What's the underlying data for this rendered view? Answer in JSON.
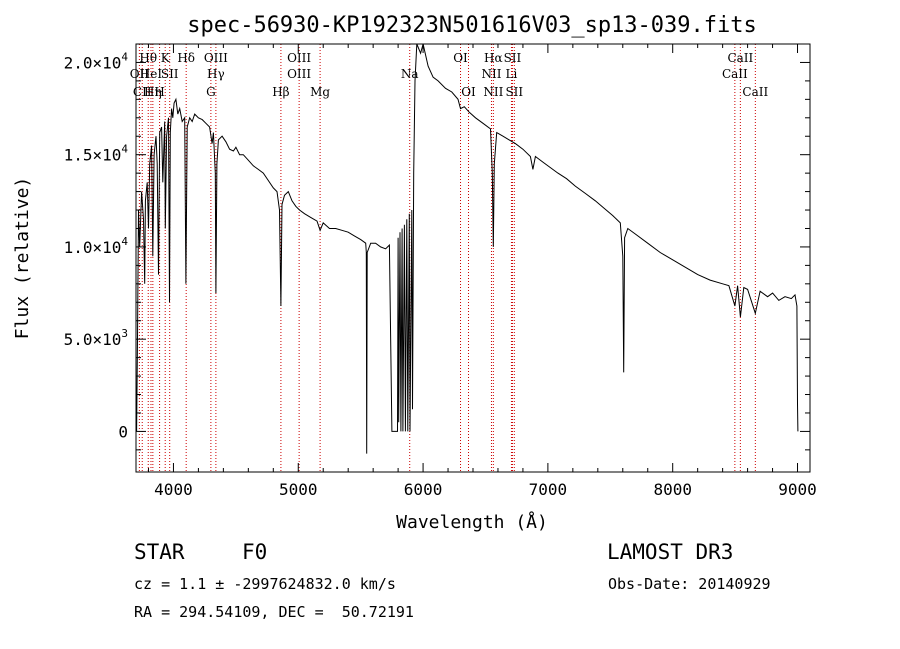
{
  "chart_data": {
    "type": "line",
    "title": "spec-56930-KP192323N501616V03_sp13-039.fits",
    "xlabel": "Wavelength (Å)",
    "ylabel": "Flux (relative)",
    "xlim": [
      3700,
      9100
    ],
    "ylim": [
      -2200,
      21000
    ],
    "x_ticks": [
      {
        "value": 4000,
        "label": "4000"
      },
      {
        "value": 5000,
        "label": "5000"
      },
      {
        "value": 6000,
        "label": "6000"
      },
      {
        "value": 7000,
        "label": "7000"
      },
      {
        "value": 8000,
        "label": "8000"
      },
      {
        "value": 9000,
        "label": "9000"
      }
    ],
    "y_ticks": [
      {
        "value": 0,
        "base": "0",
        "exp": ""
      },
      {
        "value": 5000,
        "base": "5.0×10",
        "exp": "3"
      },
      {
        "value": 10000,
        "base": "1.0×10",
        "exp": "4"
      },
      {
        "value": 15000,
        "base": "1.5×10",
        "exp": "4"
      },
      {
        "value": 20000,
        "base": "2.0×10",
        "exp": "4"
      }
    ],
    "spectrum": [
      [
        3700,
        500
      ],
      [
        3705,
        0
      ],
      [
        3712,
        5000
      ],
      [
        3720,
        12000
      ],
      [
        3730,
        10000
      ],
      [
        3745,
        13000
      ],
      [
        3760,
        11500
      ],
      [
        3770,
        8000
      ],
      [
        3775,
        12500
      ],
      [
        3790,
        13500
      ],
      [
        3800,
        11000
      ],
      [
        3810,
        14500
      ],
      [
        3825,
        15500
      ],
      [
        3835,
        9500
      ],
      [
        3845,
        15000
      ],
      [
        3860,
        16000
      ],
      [
        3870,
        14500
      ],
      [
        3880,
        8500
      ],
      [
        3890,
        16200
      ],
      [
        3905,
        16500
      ],
      [
        3915,
        13500
      ],
      [
        3930,
        16800
      ],
      [
        3935,
        11000
      ],
      [
        3945,
        16000
      ],
      [
        3960,
        17000
      ],
      [
        3968,
        7000
      ],
      [
        3975,
        16200
      ],
      [
        3985,
        17500
      ],
      [
        3995,
        17000
      ],
      [
        4005,
        17800
      ],
      [
        4020,
        18000
      ],
      [
        4035,
        17200
      ],
      [
        4050,
        17500
      ],
      [
        4070,
        16800
      ],
      [
        4090,
        17000
      ],
      [
        4100,
        8000
      ],
      [
        4110,
        16500
      ],
      [
        4130,
        17000
      ],
      [
        4150,
        16800
      ],
      [
        4170,
        17200
      ],
      [
        4200,
        17000
      ],
      [
        4230,
        16900
      ],
      [
        4260,
        16700
      ],
      [
        4290,
        16500
      ],
      [
        4310,
        15600
      ],
      [
        4320,
        16200
      ],
      [
        4335,
        14000
      ],
      [
        4340,
        7500
      ],
      [
        4348,
        14500
      ],
      [
        4360,
        15800
      ],
      [
        4390,
        16000
      ],
      [
        4420,
        15700
      ],
      [
        4450,
        15300
      ],
      [
        4480,
        15200
      ],
      [
        4500,
        15400
      ],
      [
        4530,
        15000
      ],
      [
        4560,
        15000
      ],
      [
        4600,
        14700
      ],
      [
        4640,
        14400
      ],
      [
        4680,
        14200
      ],
      [
        4720,
        14000
      ],
      [
        4760,
        13600
      ],
      [
        4800,
        13200
      ],
      [
        4830,
        13000
      ],
      [
        4850,
        12000
      ],
      [
        4861,
        6800
      ],
      [
        4870,
        12300
      ],
      [
        4890,
        12800
      ],
      [
        4920,
        13000
      ],
      [
        4950,
        12500
      ],
      [
        4980,
        12200
      ],
      [
        5010,
        12000
      ],
      [
        5050,
        11800
      ],
      [
        5100,
        11600
      ],
      [
        5150,
        11400
      ],
      [
        5175,
        10900
      ],
      [
        5200,
        11300
      ],
      [
        5250,
        11000
      ],
      [
        5300,
        11000
      ],
      [
        5350,
        10900
      ],
      [
        5400,
        10800
      ],
      [
        5450,
        10600
      ],
      [
        5500,
        10400
      ],
      [
        5540,
        10200
      ],
      [
        5545,
        9700
      ],
      [
        5548,
        -1200
      ],
      [
        5552,
        9700
      ],
      [
        5580,
        10200
      ],
      [
        5620,
        10200
      ],
      [
        5660,
        10000
      ],
      [
        5700,
        9900
      ],
      [
        5730,
        10100
      ],
      [
        5750,
        0
      ],
      [
        5795,
        0
      ],
      [
        5800,
        10500
      ],
      [
        5805,
        500
      ],
      [
        5815,
        10800
      ],
      [
        5822,
        0
      ],
      [
        5832,
        11000
      ],
      [
        5838,
        0
      ],
      [
        5850,
        11200
      ],
      [
        5858,
        0
      ],
      [
        5870,
        11500
      ],
      [
        5878,
        0
      ],
      [
        5890,
        11800
      ],
      [
        5895,
        0
      ],
      [
        5910,
        12000
      ],
      [
        5915,
        1200
      ],
      [
        5925,
        14000
      ],
      [
        5935,
        19000
      ],
      [
        5950,
        21500
      ],
      [
        5980,
        20500
      ],
      [
        6000,
        21000
      ],
      [
        6040,
        19800
      ],
      [
        6080,
        19200
      ],
      [
        6120,
        19000
      ],
      [
        6180,
        18600
      ],
      [
        6230,
        18400
      ],
      [
        6280,
        18000
      ],
      [
        6300,
        17500
      ],
      [
        6330,
        17600
      ],
      [
        6370,
        17300
      ],
      [
        6420,
        17000
      ],
      [
        6480,
        16700
      ],
      [
        6540,
        16400
      ],
      [
        6555,
        14000
      ],
      [
        6563,
        10000
      ],
      [
        6571,
        14500
      ],
      [
        6590,
        16200
      ],
      [
        6640,
        16000
      ],
      [
        6690,
        15800
      ],
      [
        6740,
        15600
      ],
      [
        6800,
        15300
      ],
      [
        6860,
        14900
      ],
      [
        6880,
        14200
      ],
      [
        6900,
        14900
      ],
      [
        6960,
        14600
      ],
      [
        7020,
        14300
      ],
      [
        7080,
        14000
      ],
      [
        7150,
        13700
      ],
      [
        7220,
        13300
      ],
      [
        7300,
        12900
      ],
      [
        7380,
        12500
      ],
      [
        7450,
        12100
      ],
      [
        7520,
        11700
      ],
      [
        7580,
        11300
      ],
      [
        7600,
        9500
      ],
      [
        7607,
        3200
      ],
      [
        7615,
        10500
      ],
      [
        7640,
        11000
      ],
      [
        7700,
        10700
      ],
      [
        7800,
        10200
      ],
      [
        7900,
        9700
      ],
      [
        8000,
        9300
      ],
      [
        8100,
        8900
      ],
      [
        8200,
        8500
      ],
      [
        8300,
        8200
      ],
      [
        8400,
        8000
      ],
      [
        8450,
        7900
      ],
      [
        8498,
        6800
      ],
      [
        8520,
        7900
      ],
      [
        8542,
        6200
      ],
      [
        8570,
        7800
      ],
      [
        8600,
        7700
      ],
      [
        8662,
        6400
      ],
      [
        8700,
        7600
      ],
      [
        8760,
        7300
      ],
      [
        8800,
        7500
      ],
      [
        8850,
        7100
      ],
      [
        8900,
        7300
      ],
      [
        8950,
        7200
      ],
      [
        8980,
        7400
      ],
      [
        8995,
        6800
      ],
      [
        9000,
        1500
      ],
      [
        9003,
        0
      ]
    ],
    "lines": [
      {
        "x": 3727,
        "labels": [
          "OII"
        ],
        "rows": [
          2
        ]
      },
      {
        "x": 3750,
        "labels": [
          "CII"
        ],
        "rows": [
          3
        ]
      },
      {
        "x": 3798,
        "labels": [
          "Hθ"
        ],
        "rows": [
          1
        ]
      },
      {
        "x": 3820,
        "labels": [
          "HeI"
        ],
        "rows": [
          2
        ]
      },
      {
        "x": 3835,
        "labels": [
          "Hη"
        ],
        "rows": [
          3
        ]
      },
      {
        "x": 3889,
        "labels": [
          "H"
        ],
        "rows": [
          3
        ]
      },
      {
        "x": 3934,
        "labels": [
          "K"
        ],
        "rows": [
          1
        ]
      },
      {
        "x": 3970,
        "labels": [
          "SII"
        ],
        "rows": [
          2
        ]
      },
      {
        "x": 4102,
        "labels": [
          "Hδ"
        ],
        "rows": [
          1
        ]
      },
      {
        "x": 4300,
        "labels": [
          "G"
        ],
        "rows": [
          3
        ]
      },
      {
        "x": 4340,
        "labels": [
          "OIII",
          "Hγ"
        ],
        "rows": [
          1,
          2
        ]
      },
      {
        "x": 4861,
        "labels": [
          "Hβ"
        ],
        "rows": [
          3
        ]
      },
      {
        "x": 5007,
        "labels": [
          "OIII",
          "OIII"
        ],
        "rows": [
          1,
          2
        ]
      },
      {
        "x": 5175,
        "labels": [
          "Mg"
        ],
        "rows": [
          3
        ]
      },
      {
        "x": 5893,
        "labels": [
          "Na"
        ],
        "rows": [
          2
        ]
      },
      {
        "x": 6300,
        "labels": [
          "OI"
        ],
        "rows": [
          1
        ]
      },
      {
        "x": 6364,
        "labels": [
          "OI"
        ],
        "rows": [
          3
        ]
      },
      {
        "x": 6548,
        "labels": [
          "NII"
        ],
        "rows": [
          2
        ]
      },
      {
        "x": 6563,
        "labels": [
          "Hα",
          "NII"
        ],
        "rows": [
          1,
          3
        ]
      },
      {
        "x": 6708,
        "labels": [
          "Li"
        ],
        "rows": [
          2
        ]
      },
      {
        "x": 6716,
        "labels": [
          "SII"
        ],
        "rows": [
          1
        ]
      },
      {
        "x": 6731,
        "labels": [
          "SII"
        ],
        "rows": [
          3
        ]
      },
      {
        "x": 8498,
        "labels": [
          "CaII"
        ],
        "rows": [
          2
        ]
      },
      {
        "x": 8542,
        "labels": [
          "CaII"
        ],
        "rows": [
          1
        ]
      },
      {
        "x": 8662,
        "labels": [
          "CaII"
        ],
        "rows": [
          3
        ]
      }
    ]
  },
  "info": {
    "object_type": "STAR",
    "subclass": "F0",
    "survey": "LAMOST DR3",
    "cz": "cz = 1.1 ± -2997624832.0 km/s",
    "obs_date": "Obs-Date: 20140929",
    "radec": "RA = 294.54109, DEC =  50.72191"
  },
  "colors": {
    "line_marker": "#cc0000",
    "spectrum": "#000000",
    "axis": "#000000"
  }
}
